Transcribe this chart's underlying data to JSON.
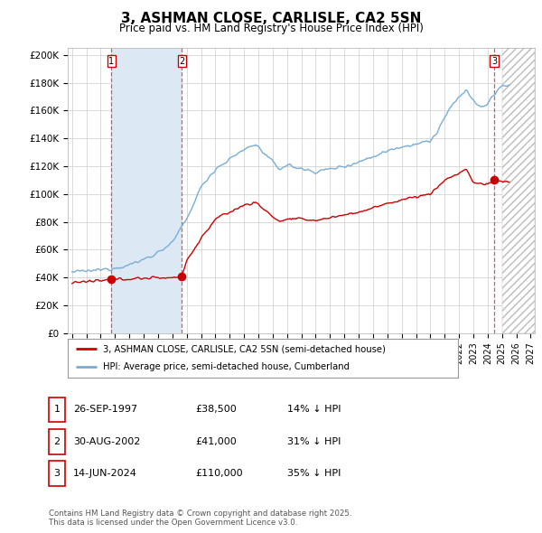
{
  "title": "3, ASHMAN CLOSE, CARLISLE, CA2 5SN",
  "subtitle": "Price paid vs. HM Land Registry's House Price Index (HPI)",
  "ylabel_ticks": [
    "£0",
    "£20K",
    "£40K",
    "£60K",
    "£80K",
    "£100K",
    "£120K",
    "£140K",
    "£160K",
    "£180K",
    "£200K"
  ],
  "ylim": [
    0,
    205000
  ],
  "yticks": [
    0,
    20000,
    40000,
    60000,
    80000,
    100000,
    120000,
    140000,
    160000,
    180000,
    200000
  ],
  "xlim_start": 1994.7,
  "xlim_end": 2027.3,
  "sales": [
    {
      "date": 1997.73,
      "price": 38500,
      "label": "1"
    },
    {
      "date": 2002.66,
      "price": 41000,
      "label": "2"
    },
    {
      "date": 2024.45,
      "price": 110000,
      "label": "3"
    }
  ],
  "sale_line_color": "#cc0000",
  "hpi_line_color": "#7aadd4",
  "hpi_fill_color": "#dce9f5",
  "hatch_fill_color": "#e0e0e0",
  "grid_color": "#cccccc",
  "legend_border_color": "#aaaaaa",
  "legend_label_price": "3, ASHMAN CLOSE, CARLISLE, CA2 5SN (semi-detached house)",
  "legend_label_hpi": "HPI: Average price, semi-detached house, Cumberland",
  "table_rows": [
    {
      "num": "1",
      "date": "26-SEP-1997",
      "price": "£38,500",
      "hpi": "14% ↓ HPI"
    },
    {
      "num": "2",
      "date": "30-AUG-2002",
      "price": "£41,000",
      "hpi": "31% ↓ HPI"
    },
    {
      "num": "3",
      "date": "14-JUN-2024",
      "price": "£110,000",
      "hpi": "35% ↓ HPI"
    }
  ],
  "footnote": "Contains HM Land Registry data © Crown copyright and database right 2025.\nThis data is licensed under the Open Government Licence v3.0.",
  "bg_color": "#ffffff",
  "plot_bg_color": "#ffffff",
  "hpi_anchors_x": [
    1995.0,
    1996.0,
    1997.0,
    1998.0,
    1999.0,
    2000.0,
    2001.0,
    2002.0,
    2003.0,
    2004.0,
    2005.0,
    2006.0,
    2007.0,
    2007.8,
    2008.5,
    2009.5,
    2010.0,
    2011.0,
    2012.0,
    2013.0,
    2014.0,
    2015.0,
    2016.0,
    2017.0,
    2017.5,
    2018.0,
    2019.0,
    2020.0,
    2020.5,
    2021.0,
    2021.5,
    2022.0,
    2022.5,
    2023.0,
    2023.5,
    2024.0,
    2024.5,
    2025.0
  ],
  "hpi_anchors_y": [
    44000,
    44500,
    45500,
    47000,
    49000,
    53000,
    58000,
    65000,
    82000,
    105000,
    118000,
    125000,
    132000,
    136000,
    128000,
    118000,
    121000,
    118000,
    116000,
    118000,
    120000,
    123000,
    127000,
    131000,
    133000,
    134000,
    136000,
    138000,
    145000,
    155000,
    163000,
    170000,
    175000,
    167000,
    162000,
    165000,
    172000,
    178000
  ],
  "price_anchors_x": [
    1995.0,
    1996.0,
    1997.0,
    1997.73,
    1998.0,
    1999.0,
    2000.0,
    2001.0,
    2002.0,
    2002.66,
    2003.0,
    2004.0,
    2005.0,
    2006.0,
    2007.0,
    2007.8,
    2008.5,
    2009.5,
    2010.0,
    2011.0,
    2012.0,
    2013.0,
    2014.0,
    2015.0,
    2016.0,
    2017.0,
    2018.0,
    2019.0,
    2020.0,
    2020.5,
    2021.0,
    2022.0,
    2022.5,
    2023.0,
    2024.0,
    2024.45,
    2025.0
  ],
  "price_anchors_y": [
    36500,
    37000,
    37500,
    38500,
    38800,
    39000,
    39500,
    39800,
    40000,
    41000,
    52000,
    68000,
    82000,
    87000,
    92000,
    94000,
    88000,
    80000,
    82000,
    82000,
    81000,
    83000,
    85000,
    87000,
    90000,
    93000,
    96000,
    98000,
    100000,
    105000,
    110000,
    115000,
    118000,
    108000,
    107000,
    110000,
    109000
  ]
}
